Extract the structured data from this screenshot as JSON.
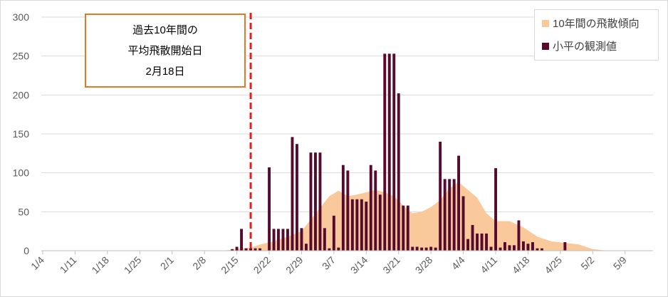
{
  "colors": {
    "area": "#f9c89b",
    "bar": "#560b2e",
    "marker_line": "#e0201e",
    "callout_border": "#e07a2b",
    "axis_text": "#595959"
  },
  "legend": {
    "area_label": "10年間の飛散傾向",
    "bar_label": "小平の観測値",
    "placement": "top-right"
  },
  "callout": {
    "line1": "過去10年間の",
    "line2": "平均飛散開始日",
    "line3": "2月18日"
  },
  "chart_data": {
    "type": "bar",
    "title": "",
    "xlabel": "",
    "ylabel": "",
    "ylim": [
      0,
      300
    ],
    "y_ticks": [
      "0",
      "50",
      "100",
      "150",
      "200",
      "250",
      "300"
    ],
    "x_ticks": [
      "1/4",
      "1/11",
      "1/18",
      "1/25",
      "2/1",
      "2/8",
      "2/15",
      "2/22",
      "2/29",
      "3/7",
      "3/14",
      "3/21",
      "3/28",
      "4/4",
      "4/11",
      "4/18",
      "4/25",
      "5/2",
      "5/9"
    ],
    "grid": "horizontal",
    "marker_date": "2/18",
    "series": [
      {
        "name": "小平の観測値",
        "type": "bar",
        "x": [
          "2/14",
          "2/15",
          "2/16",
          "2/17",
          "2/18",
          "2/19",
          "2/20",
          "2/22",
          "2/23",
          "2/24",
          "2/25",
          "2/26",
          "2/27",
          "2/28",
          "2/29",
          "3/1",
          "3/2",
          "3/3",
          "3/4",
          "3/5",
          "3/6",
          "3/7",
          "3/8",
          "3/9",
          "3/10",
          "3/11",
          "3/12",
          "3/13",
          "3/14",
          "3/15",
          "3/16",
          "3/17",
          "3/18",
          "3/19",
          "3/20",
          "3/21",
          "3/22",
          "3/23",
          "3/24",
          "3/25",
          "3/26",
          "3/27",
          "3/28",
          "3/29",
          "3/30",
          "3/31",
          "4/1",
          "4/2",
          "4/3",
          "4/4",
          "4/5",
          "4/6",
          "4/7",
          "4/8",
          "4/9",
          "4/10",
          "4/11",
          "4/12",
          "4/13",
          "4/14",
          "4/15",
          "4/16",
          "4/17",
          "4/18",
          "4/19",
          "4/20",
          "4/21",
          "4/26"
        ],
        "values": [
          2,
          5,
          28,
          3,
          3,
          3,
          3,
          107,
          28,
          28,
          28,
          28,
          146,
          137,
          29,
          9,
          126,
          126,
          126,
          29,
          3,
          45,
          4,
          110,
          103,
          66,
          66,
          66,
          63,
          110,
          103,
          72,
          253,
          253,
          253,
          202,
          58,
          58,
          5,
          5,
          4,
          4,
          5,
          4,
          140,
          92,
          92,
          92,
          122,
          70,
          15,
          33,
          22,
          22,
          22,
          5,
          106,
          4,
          11,
          7,
          7,
          39,
          12,
          9,
          11,
          3,
          3,
          11
        ]
      },
      {
        "name": "10年間の飛散傾向",
        "type": "area",
        "x": [
          "2/12",
          "2/15",
          "2/18",
          "2/20",
          "2/23",
          "2/26",
          "2/29",
          "3/2",
          "3/4",
          "3/6",
          "3/8",
          "3/10",
          "3/12",
          "3/14",
          "3/16",
          "3/18",
          "3/20",
          "3/22",
          "3/24",
          "3/26",
          "3/28",
          "3/30",
          "4/1",
          "4/3",
          "4/5",
          "4/7",
          "4/9",
          "4/11",
          "4/14",
          "4/17",
          "4/20",
          "4/23",
          "4/26",
          "4/29",
          "5/2",
          "5/5"
        ],
        "values": [
          0,
          2,
          4,
          8,
          12,
          18,
          25,
          40,
          55,
          70,
          77,
          70,
          72,
          75,
          78,
          75,
          70,
          58,
          48,
          50,
          56,
          65,
          80,
          88,
          78,
          68,
          48,
          38,
          38,
          30,
          18,
          12,
          10,
          8,
          2,
          0
        ]
      }
    ]
  }
}
